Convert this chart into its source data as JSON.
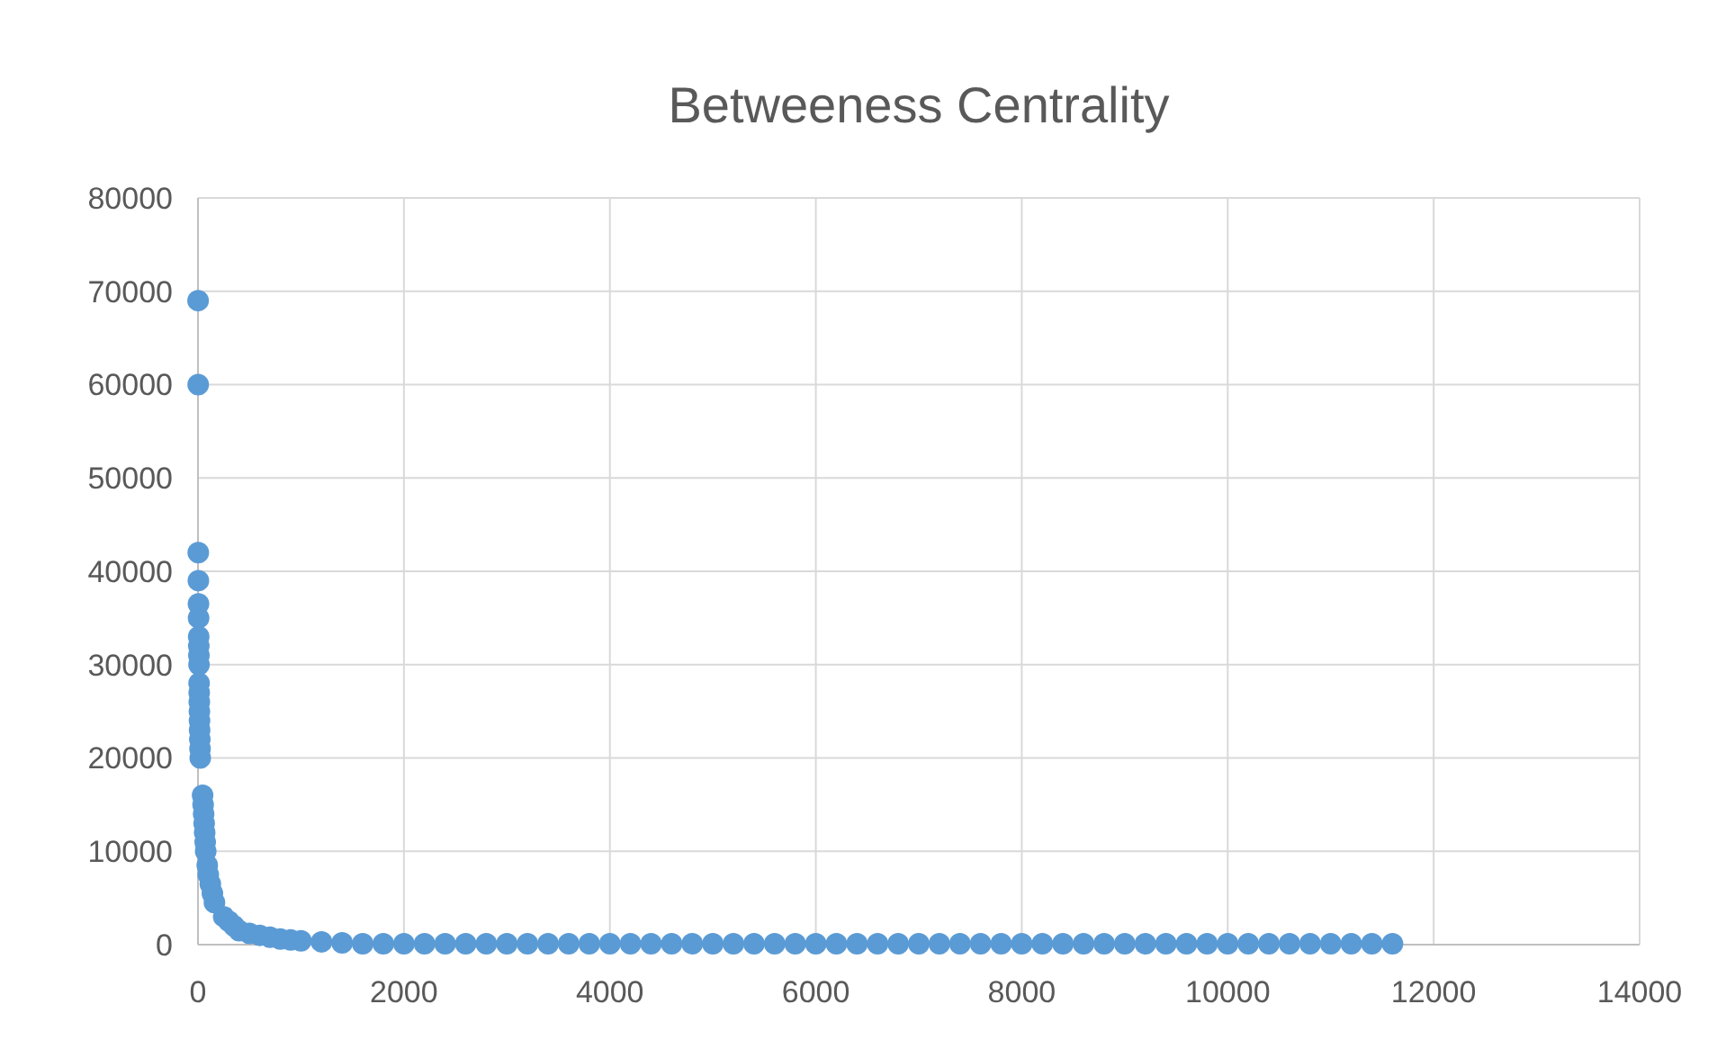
{
  "chart_data": {
    "type": "scatter",
    "title": "Betweeness Centrality",
    "color": "#5b9bd5",
    "marker": "circle",
    "grid": true,
    "xlim": [
      0,
      14000
    ],
    "xticks": [
      0,
      2000,
      4000,
      6000,
      8000,
      10000,
      12000,
      14000
    ],
    "ylim": [
      0,
      80000
    ],
    "yticks": [
      0,
      10000,
      20000,
      30000,
      40000,
      50000,
      60000,
      70000,
      80000
    ],
    "x": [
      1,
      2,
      3,
      4,
      5,
      6,
      7,
      8,
      9,
      10,
      11,
      12,
      13,
      14,
      15,
      16,
      18,
      20,
      22,
      45,
      50,
      55,
      60,
      65,
      70,
      75,
      90,
      100,
      120,
      140,
      160,
      250,
      300,
      350,
      400,
      500,
      600,
      700,
      800,
      900,
      1000,
      1200,
      1400,
      1600,
      1800,
      2000,
      2200,
      2400,
      2600,
      2800,
      3000,
      3200,
      3400,
      3600,
      3800,
      4000,
      4200,
      4400,
      4600,
      4800,
      5000,
      5200,
      5400,
      5600,
      5800,
      6000,
      6200,
      6400,
      6600,
      6800,
      7000,
      7200,
      7400,
      7600,
      7800,
      8000,
      8200,
      8400,
      8600,
      8800,
      9000,
      9200,
      9400,
      9600,
      9800,
      10000,
      10200,
      10400,
      10600,
      10800,
      11000,
      11200,
      11400,
      11600
    ],
    "values": [
      69000,
      60000,
      42000,
      39000,
      36500,
      35000,
      33000,
      32000,
      31000,
      30000,
      28000,
      27000,
      26000,
      25000,
      24000,
      23000,
      22000,
      21000,
      20000,
      16000,
      15000,
      14000,
      13000,
      12000,
      11000,
      10000,
      8500,
      7500,
      6500,
      5500,
      4500,
      3000,
      2500,
      2000,
      1500,
      1200,
      1000,
      800,
      600,
      500,
      400,
      300,
      200,
      100,
      100,
      100,
      100,
      100,
      100,
      100,
      100,
      100,
      100,
      100,
      100,
      100,
      100,
      100,
      100,
      100,
      100,
      100,
      100,
      100,
      100,
      100,
      100,
      100,
      100,
      100,
      100,
      100,
      100,
      100,
      100,
      100,
      100,
      100,
      100,
      100,
      100,
      100,
      100,
      100,
      100,
      100,
      100,
      100,
      100,
      100,
      100,
      100,
      100,
      100
    ]
  }
}
